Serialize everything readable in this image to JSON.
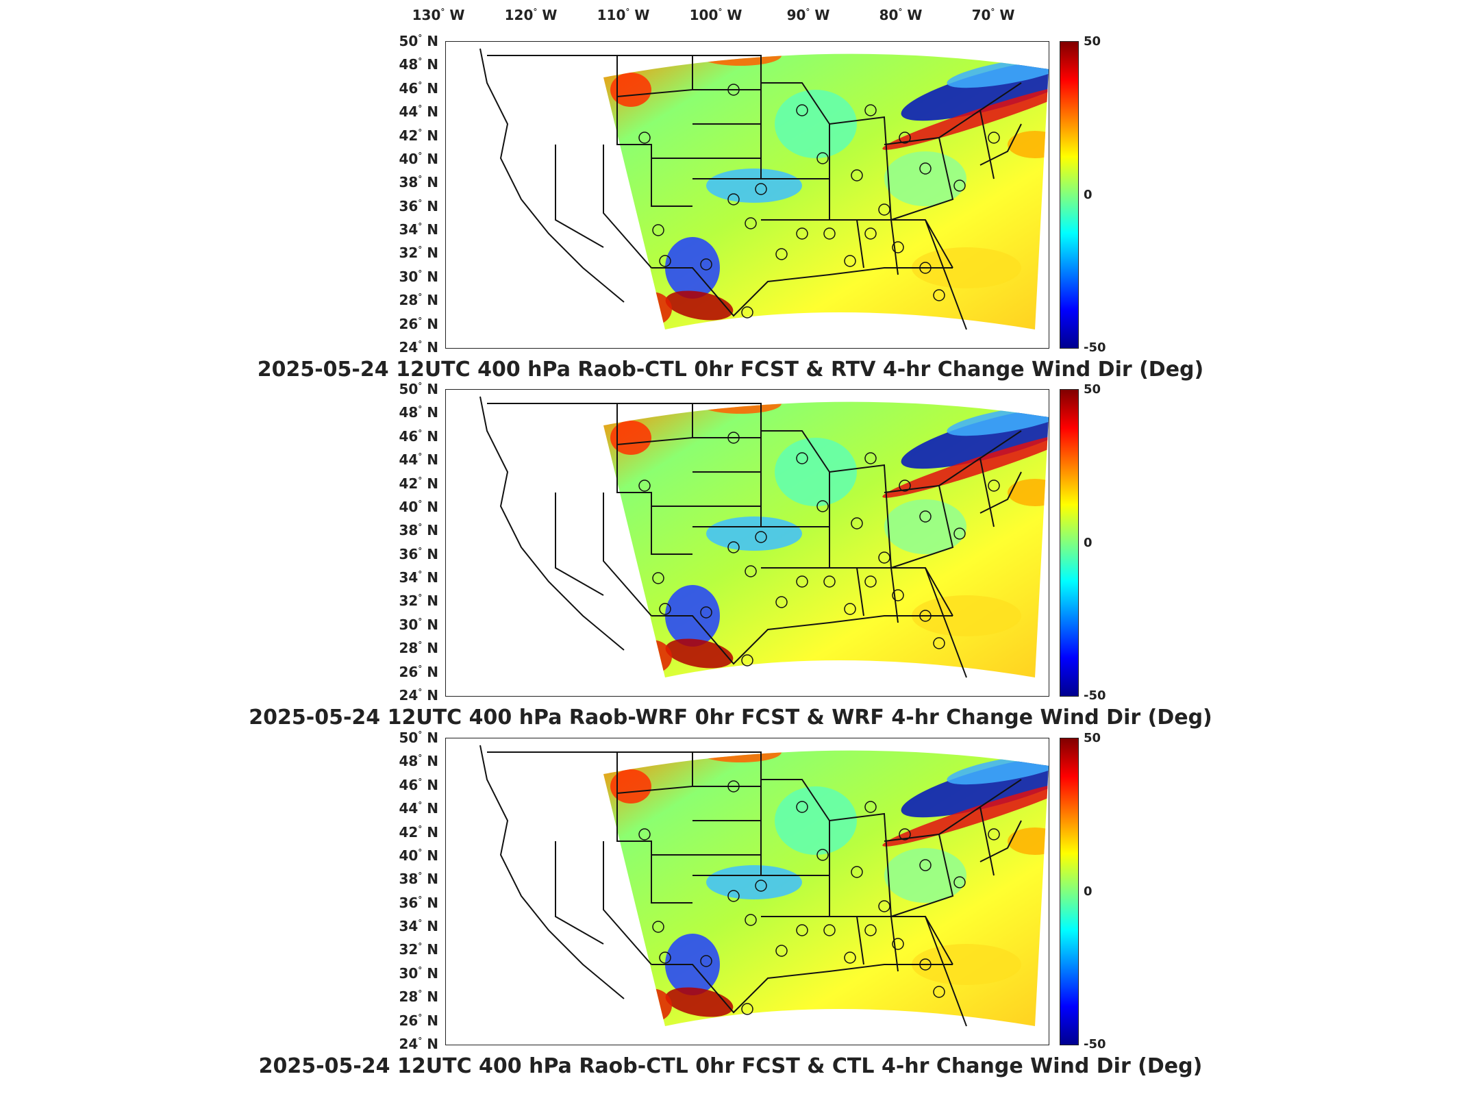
{
  "lon_labels": [
    {
      "deg": "130",
      "dir": "W"
    },
    {
      "deg": "120",
      "dir": "W"
    },
    {
      "deg": "110",
      "dir": "W"
    },
    {
      "deg": "100",
      "dir": "W"
    },
    {
      "deg": "90",
      "dir": "W"
    },
    {
      "deg": "80",
      "dir": "W"
    },
    {
      "deg": "70",
      "dir": "W"
    }
  ],
  "lat_labels": [
    {
      "deg": "50",
      "dir": "N"
    },
    {
      "deg": "48",
      "dir": "N"
    },
    {
      "deg": "46",
      "dir": "N"
    },
    {
      "deg": "44",
      "dir": "N"
    },
    {
      "deg": "42",
      "dir": "N"
    },
    {
      "deg": "40",
      "dir": "N"
    },
    {
      "deg": "38",
      "dir": "N"
    },
    {
      "deg": "36",
      "dir": "N"
    },
    {
      "deg": "34",
      "dir": "N"
    },
    {
      "deg": "32",
      "dir": "N"
    },
    {
      "deg": "30",
      "dir": "N"
    },
    {
      "deg": "28",
      "dir": "N"
    },
    {
      "deg": "26",
      "dir": "N"
    },
    {
      "deg": "24",
      "dir": "N"
    }
  ],
  "colorbar": {
    "max_label": "50",
    "mid_label": "0",
    "min_label": "-50",
    "colors": [
      "#00008f",
      "#0000ff",
      "#0080ff",
      "#00ffff",
      "#80ff80",
      "#ffff00",
      "#ff8000",
      "#ff0000",
      "#800000"
    ]
  },
  "panels": [
    {
      "title": "2025-05-24 12UTC 400 hPa Raob-CTL 0hr FCST & RTV 4-hr Change Wind Dir (Deg)"
    },
    {
      "title": "2025-05-24 12UTC 400 hPa Raob-WRF 0hr FCST & WRF 4-hr Change Wind Dir (Deg)"
    },
    {
      "title": "2025-05-24 12UTC 400 hPa Raob-CTL 0hr FCST & CTL 4-hr Change Wind Dir (Deg)"
    }
  ]
}
